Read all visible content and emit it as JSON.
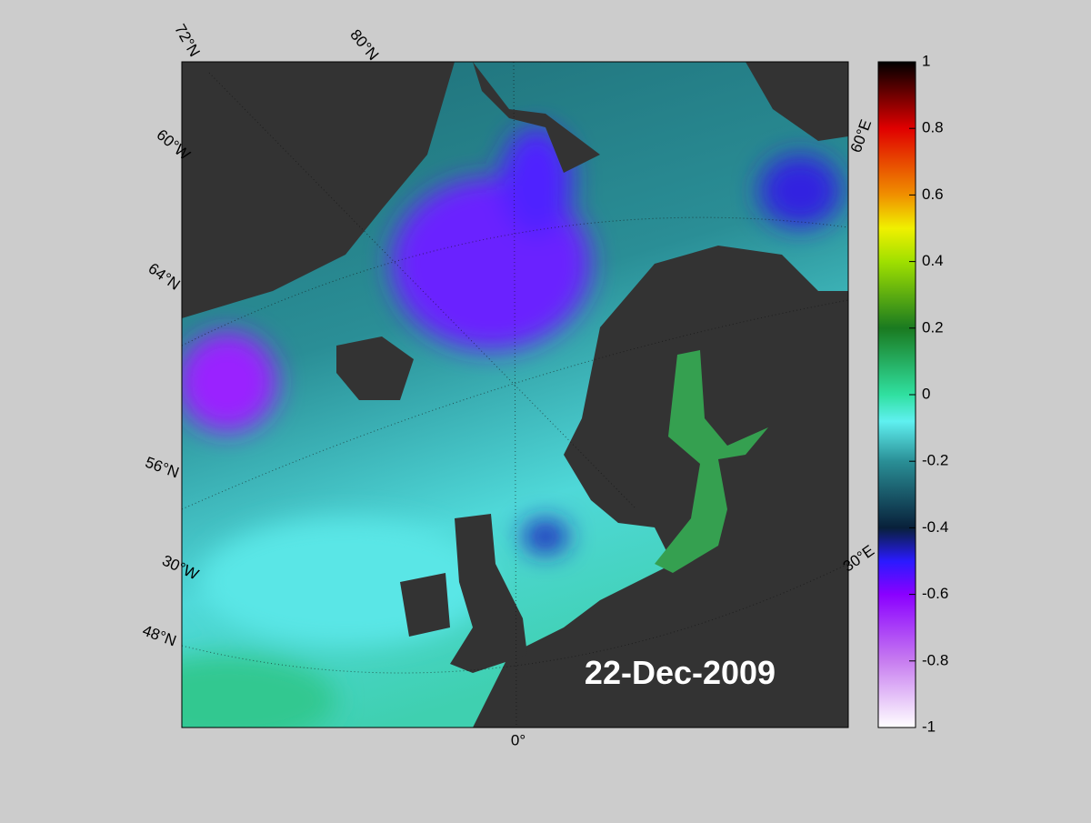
{
  "map": {
    "graticule_labels": [
      "72°N",
      "80°N",
      "60°W",
      "64°N",
      "56°N",
      "30°W",
      "48°N",
      "0°",
      "60°E",
      "30°E"
    ],
    "date": "22-Dec-2009"
  },
  "colorbar": {
    "lim": [
      -1,
      1
    ],
    "ticks": [
      1,
      0.8,
      0.6,
      0.4,
      0.2,
      0,
      -0.2,
      -0.4,
      -0.6,
      -0.8,
      -1
    ]
  }
}
